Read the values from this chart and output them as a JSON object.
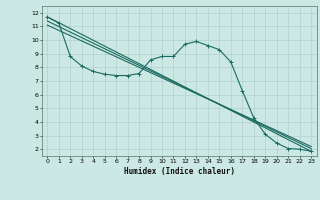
{
  "xlabel": "Humidex (Indice chaleur)",
  "bg_color": "#cce8e4",
  "grid_color": "#aaccc8",
  "line_color": "#1a6a60",
  "sep_color": "#336655",
  "xlim": [
    -0.5,
    23.5
  ],
  "ylim": [
    1.5,
    12.5
  ],
  "xticks": [
    0,
    1,
    2,
    3,
    4,
    5,
    6,
    7,
    8,
    9,
    10,
    11,
    12,
    13,
    14,
    15,
    16,
    17,
    18,
    19,
    20,
    21,
    22,
    23
  ],
  "yticks": [
    2,
    3,
    4,
    5,
    6,
    7,
    8,
    9,
    10,
    11,
    12
  ],
  "line1_x": [
    0,
    1,
    2,
    3,
    4,
    5,
    6,
    7,
    8,
    9,
    10,
    11,
    12,
    13,
    14,
    15,
    16,
    17,
    18,
    19,
    20,
    21,
    22,
    23
  ],
  "line1_y": [
    11.7,
    11.25,
    8.8,
    8.1,
    7.7,
    7.5,
    7.4,
    7.4,
    7.55,
    8.55,
    8.8,
    8.8,
    9.7,
    9.9,
    9.6,
    9.3,
    8.4,
    6.3,
    4.3,
    3.1,
    2.45,
    2.05,
    2.0,
    1.85
  ],
  "line2_x": [
    0,
    23
  ],
  "line2_y": [
    11.7,
    1.85
  ],
  "line3_x": [
    0,
    23
  ],
  "line3_y": [
    11.4,
    2.05
  ],
  "line4_x": [
    0,
    23
  ],
  "line4_y": [
    11.1,
    2.2
  ]
}
